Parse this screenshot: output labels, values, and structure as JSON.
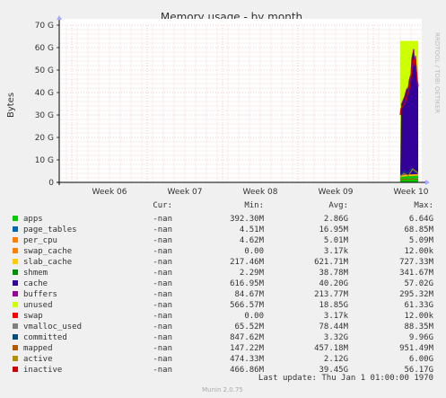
{
  "chart_data": {
    "type": "area",
    "title": "Memory usage - by month",
    "ylabel": "Bytes",
    "xlabel": "",
    "y_ticks": [
      "0",
      "10 G",
      "20 G",
      "30 G",
      "40 G",
      "50 G",
      "60 G",
      "70 G"
    ],
    "ylim": [
      0,
      70
    ],
    "y_unit": "G",
    "x_ticks": [
      "Week 06",
      "Week 07",
      "Week 08",
      "Week 09",
      "Week 10"
    ],
    "grid": true,
    "watermark": "RRDTOOL / TOBI OETIKER",
    "data_region": "Week 10 only; no data earlier",
    "series_values_at_peak": {
      "apps": 2.5,
      "page_tables": 0.1,
      "per_cpu": 0.01,
      "swap_cache": 0,
      "slab_cache": 0.7,
      "shmem": 0.3,
      "cache": 57,
      "buffers": 0.3,
      "unused": 2,
      "swap": 0,
      "vmalloc_used": 0.09,
      "committed": 9.96,
      "mapped": 0.95,
      "active": 6.0,
      "inactive": 56.17
    }
  },
  "legend": {
    "headers": [
      "Cur:",
      "Min:",
      "Avg:",
      "Max:"
    ],
    "rows": [
      {
        "name": "apps",
        "color": "#00cc00",
        "cur": "-nan",
        "min": "392.30M",
        "avg": "2.86G",
        "max": "6.64G"
      },
      {
        "name": "page_tables",
        "color": "#0066b3",
        "cur": "-nan",
        "min": "4.51M",
        "avg": "16.95M",
        "max": "68.85M"
      },
      {
        "name": "per_cpu",
        "color": "#ff8000",
        "cur": "-nan",
        "min": "4.62M",
        "avg": "5.01M",
        "max": "5.09M"
      },
      {
        "name": "swap_cache",
        "color": "#ff8000",
        "cur": "-nan",
        "min": "0.00",
        "avg": "3.17k",
        "max": "12.00k"
      },
      {
        "name": "slab_cache",
        "color": "#ffcc00",
        "cur": "-nan",
        "min": "217.46M",
        "avg": "621.71M",
        "max": "727.33M"
      },
      {
        "name": "shmem",
        "color": "#008f00",
        "cur": "-nan",
        "min": "2.29M",
        "avg": "38.78M",
        "max": "341.67M"
      },
      {
        "name": "cache",
        "color": "#330099",
        "cur": "-nan",
        "min": "616.95M",
        "avg": "40.20G",
        "max": "57.02G"
      },
      {
        "name": "buffers",
        "color": "#990099",
        "cur": "-nan",
        "min": "84.67M",
        "avg": "213.77M",
        "max": "295.32M"
      },
      {
        "name": "unused",
        "color": "#ccff00",
        "cur": "-nan",
        "min": "566.57M",
        "avg": "18.85G",
        "max": "61.33G"
      },
      {
        "name": "swap",
        "color": "#ff0000",
        "cur": "-nan",
        "min": "0.00",
        "avg": "3.17k",
        "max": "12.00k"
      },
      {
        "name": "vmalloc_used",
        "color": "#808080",
        "cur": "-nan",
        "min": "65.52M",
        "avg": "78.44M",
        "max": "88.35M"
      },
      {
        "name": "committed",
        "color": "#004d80",
        "cur": "-nan",
        "min": "847.62M",
        "avg": "3.32G",
        "max": "9.96G"
      },
      {
        "name": "mapped",
        "color": "#b35a00",
        "cur": "-nan",
        "min": "147.22M",
        "avg": "457.18M",
        "max": "951.49M"
      },
      {
        "name": "active",
        "color": "#b38f00",
        "cur": "-nan",
        "min": "474.33M",
        "avg": "2.12G",
        "max": "6.00G"
      },
      {
        "name": "inactive",
        "color": "#cc0000",
        "cur": "-nan",
        "min": "466.86M",
        "avg": "39.45G",
        "max": "56.17G"
      }
    ]
  },
  "last_update": "Last update: Thu Jan  1 01:00:00 1970",
  "footer": "Munin 2.0.75"
}
